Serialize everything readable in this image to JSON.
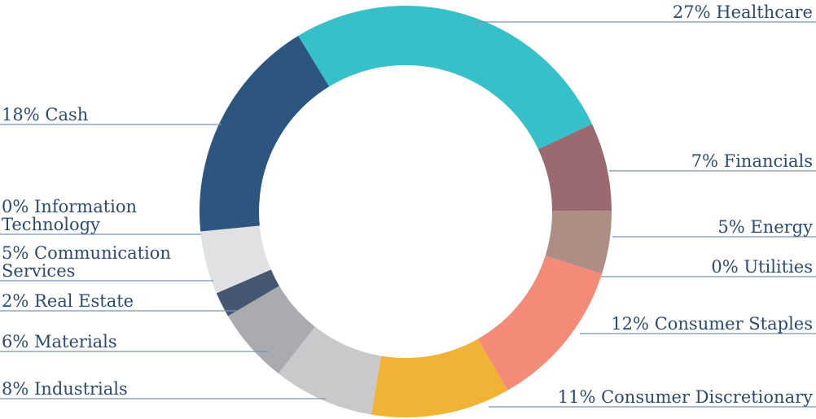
{
  "chart_data": {
    "type": "donut",
    "categories": [
      "Healthcare",
      "Financials",
      "Energy",
      "Utilities",
      "Consumer Staples",
      "Consumer Discretionary",
      "Industrials",
      "Materials",
      "Real Estate",
      "Communication Services",
      "Information Technology",
      "Cash"
    ],
    "values": [
      27,
      7,
      5,
      0,
      12,
      11,
      8,
      6,
      2,
      5,
      0,
      18
    ],
    "value_labels": [
      "27%",
      "7%",
      "5%",
      "0%",
      "12%",
      "11%",
      "8%",
      "6%",
      "2%",
      "5%",
      "0%",
      "18%"
    ],
    "colors": [
      "#36c0c9",
      "#9a6a70",
      "#ae8d84",
      "#c9b3a8",
      "#f48b78",
      "#f0b336",
      "#c8c9cb",
      "#aaabae",
      "#465871",
      "#e0e1e3",
      "#d0d0d0",
      "#2c5580"
    ]
  }
}
